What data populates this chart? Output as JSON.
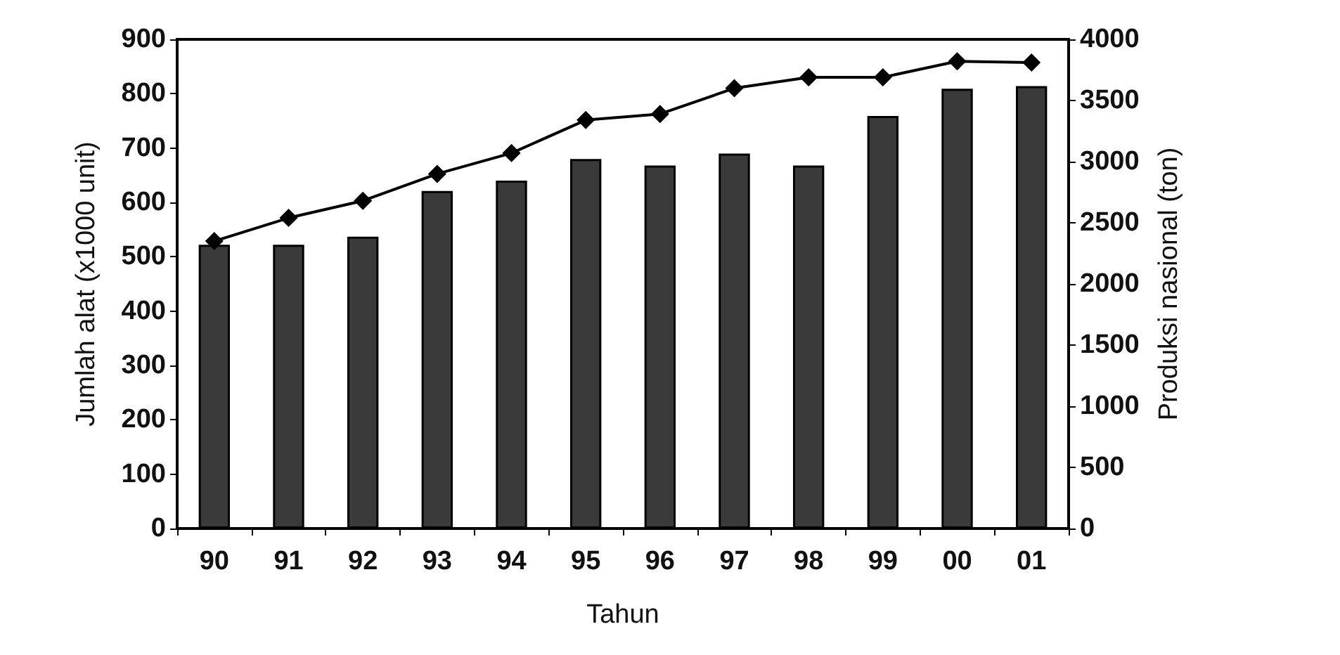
{
  "chart_data": {
    "type": "bar",
    "xlabel": "Tahun",
    "ylabel": "Jumlah alat (x1000 unit)",
    "y2label": "Produksi nasional (ton)",
    "categories": [
      "90",
      "91",
      "92",
      "93",
      "94",
      "95",
      "96",
      "97",
      "98",
      "99",
      "00",
      "01"
    ],
    "series": [
      {
        "color": "#3a3a3a",
        "values": [
          522,
          522,
          537,
          621,
          640,
          680,
          668,
          690,
          668,
          759,
          809,
          814
        ]
      },
      {
        "type": "line",
        "axis": "y2",
        "color": "#000000",
        "marker": "diamond",
        "values": [
          2350,
          2540,
          2680,
          2900,
          3070,
          3340,
          3390,
          3600,
          3690,
          3690,
          3820,
          3810
        ]
      }
    ],
    "ylim": [
      0,
      900
    ],
    "yticks": [
      0,
      100,
      200,
      300,
      400,
      500,
      600,
      700,
      800,
      900
    ],
    "y2lim": [
      0,
      4000
    ],
    "y2ticks": [
      0,
      500,
      1000,
      1500,
      2000,
      2500,
      3000,
      3500,
      4000
    ],
    "grid": false
  }
}
